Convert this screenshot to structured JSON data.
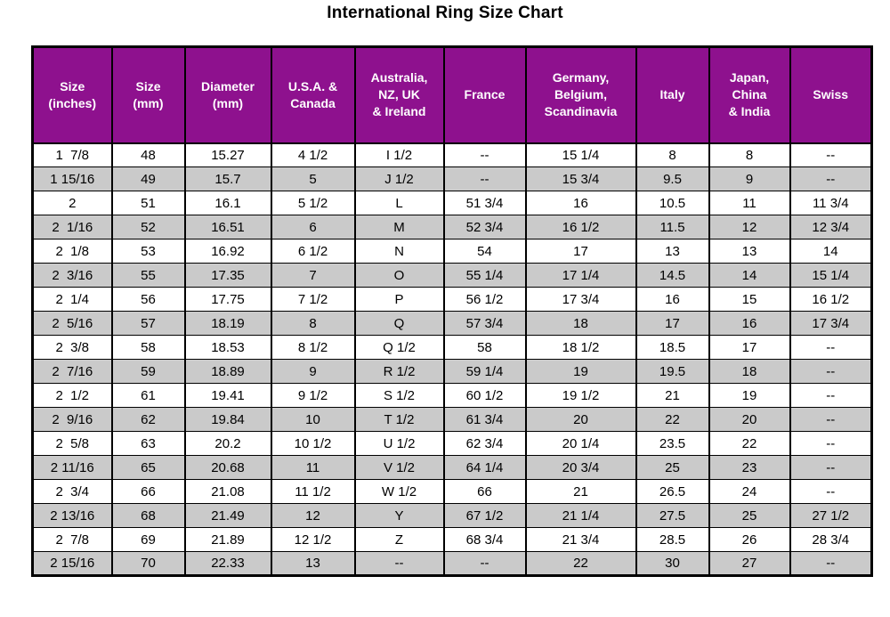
{
  "title": "International Ring Size Chart",
  "colors": {
    "header_bg": "#8e118e",
    "header_text": "#ffffff",
    "alt_row_bg": "#c9c9c9",
    "border": "#000000",
    "title_color": "#000000"
  },
  "chart_data": {
    "type": "table",
    "title": "International Ring Size Chart",
    "columns": [
      "Size\n(inches)",
      "Size\n(mm)",
      "Diameter\n(mm)",
      "U.S.A. &\nCanada",
      "Australia,\nNZ, UK\n& Ireland",
      "France",
      "Germany,\nBelgium,\nScandinavia",
      "Italy",
      "Japan,\nChina\n& India",
      "Swiss"
    ],
    "rows": [
      [
        "1  7/8",
        "48",
        "15.27",
        "4 1/2",
        "I 1/2",
        "--",
        "15 1/4",
        "8",
        "8",
        "--"
      ],
      [
        "1 15/16",
        "49",
        "15.7",
        "5",
        "J 1/2",
        "--",
        "15 3/4",
        "9.5",
        "9",
        "--"
      ],
      [
        "2",
        "51",
        "16.1",
        "5 1/2",
        "L",
        "51 3/4",
        "16",
        "10.5",
        "11",
        "11 3/4"
      ],
      [
        "2  1/16",
        "52",
        "16.51",
        "6",
        "M",
        "52 3/4",
        "16 1/2",
        "11.5",
        "12",
        "12 3/4"
      ],
      [
        "2  1/8",
        "53",
        "16.92",
        "6 1/2",
        "N",
        "54",
        "17",
        "13",
        "13",
        "14"
      ],
      [
        "2  3/16",
        "55",
        "17.35",
        "7",
        "O",
        "55 1/4",
        "17 1/4",
        "14.5",
        "14",
        "15 1/4"
      ],
      [
        "2  1/4",
        "56",
        "17.75",
        "7 1/2",
        "P",
        "56 1/2",
        "17 3/4",
        "16",
        "15",
        "16 1/2"
      ],
      [
        "2  5/16",
        "57",
        "18.19",
        "8",
        "Q",
        "57 3/4",
        "18",
        "17",
        "16",
        "17 3/4"
      ],
      [
        "2  3/8",
        "58",
        "18.53",
        "8 1/2",
        "Q 1/2",
        "58",
        "18 1/2",
        "18.5",
        "17",
        "--"
      ],
      [
        "2  7/16",
        "59",
        "18.89",
        "9",
        "R 1/2",
        "59 1/4",
        "19",
        "19.5",
        "18",
        "--"
      ],
      [
        "2  1/2",
        "61",
        "19.41",
        "9 1/2",
        "S 1/2",
        "60 1/2",
        "19 1/2",
        "21",
        "19",
        "--"
      ],
      [
        "2  9/16",
        "62",
        "19.84",
        "10",
        "T 1/2",
        "61 3/4",
        "20",
        "22",
        "20",
        "--"
      ],
      [
        "2  5/8",
        "63",
        "20.2",
        "10 1/2",
        "U 1/2",
        "62 3/4",
        "20 1/4",
        "23.5",
        "22",
        "--"
      ],
      [
        "2 11/16",
        "65",
        "20.68",
        "11",
        "V 1/2",
        "64 1/4",
        "20 3/4",
        "25",
        "23",
        "--"
      ],
      [
        "2  3/4",
        "66",
        "21.08",
        "11 1/2",
        "W 1/2",
        "66",
        "21",
        "26.5",
        "24",
        "--"
      ],
      [
        "2 13/16",
        "68",
        "21.49",
        "12",
        "Y",
        "67 1/2",
        "21 1/4",
        "27.5",
        "25",
        "27 1/2"
      ],
      [
        "2  7/8",
        "69",
        "21.89",
        "12 1/2",
        "Z",
        "68 3/4",
        "21 3/4",
        "28.5",
        "26",
        "28 3/4"
      ],
      [
        "2 15/16",
        "70",
        "22.33",
        "13",
        "--",
        "--",
        "22",
        "30",
        "27",
        "--"
      ]
    ]
  }
}
